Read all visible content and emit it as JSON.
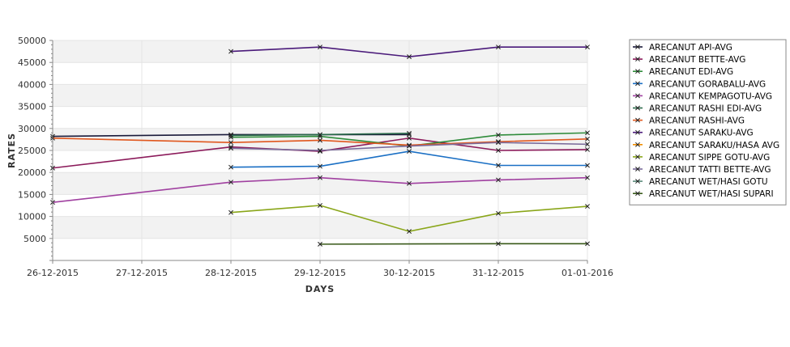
{
  "chart_data": {
    "type": "line",
    "xlabel": "DAYS",
    "ylabel": "RATES",
    "categories": [
      "26-12-2015",
      "27-12-2015",
      "28-12-2015",
      "29-12-2015",
      "30-12-2015",
      "31-12-2015",
      "01-01-2016"
    ],
    "ylim": [
      0,
      50000
    ],
    "yticks": [
      5000,
      10000,
      15000,
      20000,
      25000,
      30000,
      35000,
      40000,
      45000,
      50000
    ],
    "grid": true,
    "legend_position": "right",
    "series": [
      {
        "name": "ARECANUT API-AVG",
        "color": "#1a1a3a",
        "values": [
          28200,
          null,
          28600,
          28600,
          28600,
          null,
          null
        ]
      },
      {
        "name": "ARECANUT BETTE-AVG",
        "color": "#8b1a5a",
        "values": [
          21000,
          null,
          25800,
          24800,
          27800,
          25000,
          25200
        ]
      },
      {
        "name": "ARECANUT EDI-AVG",
        "color": "#2e8b3a",
        "values": [
          null,
          null,
          28000,
          28200,
          26000,
          28500,
          29000
        ]
      },
      {
        "name": "ARECANUT GORABALU-AVG",
        "color": "#1a6fc4",
        "values": [
          null,
          null,
          21200,
          21400,
          24800,
          21600,
          21600
        ]
      },
      {
        "name": "ARECANUT KEMPAGOTU-AVG",
        "color": "#a040a0",
        "values": [
          13200,
          null,
          17800,
          18800,
          17500,
          18300,
          18800
        ]
      },
      {
        "name": "ARECANUT RASHI EDI-AVG",
        "color": "#2a6a4a",
        "values": [
          null,
          null,
          28400,
          28600,
          28900,
          null,
          null
        ]
      },
      {
        "name": "ARECANUT RASHI-AVG",
        "color": "#e0571e",
        "values": [
          27800,
          null,
          26800,
          27300,
          26200,
          27000,
          27600
        ]
      },
      {
        "name": "ARECANUT SARAKU-AVG",
        "color": "#4a1a7a",
        "values": [
          null,
          null,
          47500,
          48500,
          46300,
          48500,
          48500
        ]
      },
      {
        "name": "ARECANUT SARAKU/HASA AVG",
        "color": "#f08c00",
        "values": [
          null,
          null,
          null,
          null,
          null,
          null,
          null
        ]
      },
      {
        "name": "ARECANUT SIPPE GOTU-AVG",
        "color": "#8aa61a",
        "values": [
          null,
          null,
          10900,
          12500,
          6600,
          10700,
          12300
        ]
      },
      {
        "name": "ARECANUT TATTI BETTE-AVG",
        "color": "#7a6a9a",
        "values": [
          null,
          null,
          25500,
          25000,
          26000,
          26800,
          26400
        ]
      },
      {
        "name": "ARECANUT WET/HASI GOTU",
        "color": "#5a8a7a",
        "values": [
          null,
          null,
          null,
          null,
          null,
          null,
          null
        ]
      },
      {
        "name": "ARECANUT WET/HASI SUPARI",
        "color": "#3a5a1a",
        "values": [
          null,
          null,
          null,
          3700,
          null,
          3800,
          3800
        ]
      }
    ]
  }
}
